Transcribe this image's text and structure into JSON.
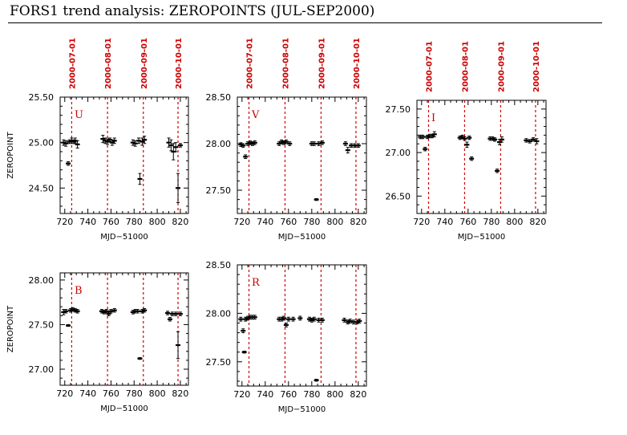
{
  "title": "FORS1 trend analysis: ZEROPOINTS (JUL-SEP2000)",
  "colors": {
    "marker": "#cc0000",
    "data": "#000000"
  },
  "chart_data": [
    {
      "type": "scatter",
      "band": "U",
      "xlabel": "MJD−51000",
      "ylabel": "ZEROPOINT",
      "xlim": [
        716,
        827
      ],
      "ylim": [
        24.22,
        25.5
      ],
      "xticks": [
        720,
        740,
        760,
        780,
        800,
        820
      ],
      "yticks": [
        24.5,
        25.0,
        25.5
      ],
      "ytick_labels": [
        "24.50",
        "25.00",
        "25.50"
      ],
      "markers": [
        {
          "x": 726,
          "label": "2000-07-01"
        },
        {
          "x": 757,
          "label": "2000-08-01"
        },
        {
          "x": 788,
          "label": "2000-09-01"
        },
        {
          "x": 818,
          "label": "2000-10-01"
        }
      ],
      "points": [
        {
          "x": 719,
          "y": 25.0,
          "e": 0.03
        },
        {
          "x": 721,
          "y": 24.99,
          "e": 0.03
        },
        {
          "x": 723,
          "y": 24.77,
          "e": 0.02
        },
        {
          "x": 724,
          "y": 25.01,
          "e": 0.02
        },
        {
          "x": 726,
          "y": 25.02,
          "e": 0.03
        },
        {
          "x": 728,
          "y": 25.01,
          "e": 0.02
        },
        {
          "x": 729,
          "y": 25.02,
          "e": 0.03
        },
        {
          "x": 731,
          "y": 24.98,
          "e": 0.04
        },
        {
          "x": 753,
          "y": 25.04,
          "e": 0.04
        },
        {
          "x": 755,
          "y": 25.02,
          "e": 0.03
        },
        {
          "x": 757,
          "y": 25.01,
          "e": 0.03
        },
        {
          "x": 759,
          "y": 25.03,
          "e": 0.02
        },
        {
          "x": 761,
          "y": 25.0,
          "e": 0.03
        },
        {
          "x": 763,
          "y": 25.02,
          "e": 0.03
        },
        {
          "x": 779,
          "y": 25.0,
          "e": 0.03
        },
        {
          "x": 781,
          "y": 24.99,
          "e": 0.03
        },
        {
          "x": 784,
          "y": 25.02,
          "e": 0.03
        },
        {
          "x": 785,
          "y": 24.6,
          "e": 0.06
        },
        {
          "x": 787,
          "y": 25.01,
          "e": 0.04
        },
        {
          "x": 789,
          "y": 25.03,
          "e": 0.04
        },
        {
          "x": 810,
          "y": 25.0,
          "e": 0.05
        },
        {
          "x": 812,
          "y": 24.97,
          "e": 0.06
        },
        {
          "x": 814,
          "y": 24.9,
          "e": 0.09
        },
        {
          "x": 816,
          "y": 24.95,
          "e": 0.05
        },
        {
          "x": 818,
          "y": 24.5,
          "e": 0.16
        },
        {
          "x": 820,
          "y": 24.97,
          "e": 0.02
        }
      ]
    },
    {
      "type": "scatter",
      "band": "V",
      "xlabel": "MJD−51000",
      "ylabel": "",
      "xlim": [
        716,
        827
      ],
      "ylim": [
        27.25,
        28.5
      ],
      "xticks": [
        720,
        740,
        760,
        780,
        800,
        820
      ],
      "yticks": [
        27.5,
        28.0,
        28.5
      ],
      "ytick_labels": [
        "27.50",
        "28.00",
        "28.50"
      ],
      "markers": [
        {
          "x": 726,
          "label": "2000-07-01"
        },
        {
          "x": 757,
          "label": "2000-08-01"
        },
        {
          "x": 788,
          "label": "2000-09-01"
        },
        {
          "x": 818,
          "label": "2000-10-01"
        }
      ],
      "points": [
        {
          "x": 719,
          "y": 27.99,
          "e": 0.02
        },
        {
          "x": 721,
          "y": 27.98,
          "e": 0.02
        },
        {
          "x": 723,
          "y": 27.86,
          "e": 0.02
        },
        {
          "x": 725,
          "y": 28.0,
          "e": 0.02
        },
        {
          "x": 727,
          "y": 28.01,
          "e": 0.02
        },
        {
          "x": 729,
          "y": 28.0,
          "e": 0.02
        },
        {
          "x": 731,
          "y": 28.01,
          "e": 0.02
        },
        {
          "x": 752,
          "y": 28.0,
          "e": 0.02
        },
        {
          "x": 754,
          "y": 28.02,
          "e": 0.02
        },
        {
          "x": 756,
          "y": 28.01,
          "e": 0.02
        },
        {
          "x": 758,
          "y": 28.02,
          "e": 0.02
        },
        {
          "x": 761,
          "y": 28.0,
          "e": 0.02
        },
        {
          "x": 780,
          "y": 28.0,
          "e": 0.02
        },
        {
          "x": 782,
          "y": 28.0,
          "e": 0.02
        },
        {
          "x": 784,
          "y": 27.4,
          "e": 0.01
        },
        {
          "x": 786,
          "y": 28.0,
          "e": 0.02
        },
        {
          "x": 789,
          "y": 28.01,
          "e": 0.02
        },
        {
          "x": 809,
          "y": 28.0,
          "e": 0.02
        },
        {
          "x": 811,
          "y": 27.93,
          "e": 0.03
        },
        {
          "x": 814,
          "y": 27.98,
          "e": 0.02
        },
        {
          "x": 817,
          "y": 27.98,
          "e": 0.02
        },
        {
          "x": 820,
          "y": 27.98,
          "e": 0.02
        }
      ]
    },
    {
      "type": "scatter",
      "band": "I",
      "xlabel": "MJD−51000",
      "ylabel": "",
      "xlim": [
        716,
        827
      ],
      "ylim": [
        26.3,
        27.6
      ],
      "xticks": [
        720,
        740,
        760,
        780,
        800,
        820
      ],
      "yticks": [
        26.5,
        27.0,
        27.5
      ],
      "ytick_labels": [
        "26.50",
        "27.00",
        "27.50"
      ],
      "markers": [
        {
          "x": 726,
          "label": "2000-07-01"
        },
        {
          "x": 757,
          "label": "2000-08-01"
        },
        {
          "x": 788,
          "label": "2000-09-01"
        },
        {
          "x": 818,
          "label": "2000-10-01"
        }
      ],
      "points": [
        {
          "x": 719,
          "y": 27.18,
          "e": 0.02
        },
        {
          "x": 721,
          "y": 27.18,
          "e": 0.02
        },
        {
          "x": 723,
          "y": 27.04,
          "e": 0.02
        },
        {
          "x": 725,
          "y": 27.18,
          "e": 0.02
        },
        {
          "x": 727,
          "y": 27.19,
          "e": 0.02
        },
        {
          "x": 729,
          "y": 27.19,
          "e": 0.02
        },
        {
          "x": 731,
          "y": 27.21,
          "e": 0.03
        },
        {
          "x": 753,
          "y": 27.17,
          "e": 0.02
        },
        {
          "x": 755,
          "y": 27.18,
          "e": 0.02
        },
        {
          "x": 757,
          "y": 27.16,
          "e": 0.02
        },
        {
          "x": 759,
          "y": 27.09,
          "e": 0.03
        },
        {
          "x": 761,
          "y": 27.17,
          "e": 0.02
        },
        {
          "x": 763,
          "y": 26.93,
          "e": 0.02
        },
        {
          "x": 779,
          "y": 27.16,
          "e": 0.02
        },
        {
          "x": 781,
          "y": 27.16,
          "e": 0.02
        },
        {
          "x": 783,
          "y": 27.15,
          "e": 0.02
        },
        {
          "x": 785,
          "y": 26.79,
          "e": 0.02
        },
        {
          "x": 787,
          "y": 27.12,
          "e": 0.03
        },
        {
          "x": 789,
          "y": 27.15,
          "e": 0.03
        },
        {
          "x": 810,
          "y": 27.14,
          "e": 0.02
        },
        {
          "x": 813,
          "y": 27.13,
          "e": 0.02
        },
        {
          "x": 816,
          "y": 27.15,
          "e": 0.02
        },
        {
          "x": 819,
          "y": 27.13,
          "e": 0.03
        }
      ]
    },
    {
      "type": "scatter",
      "band": "B",
      "xlabel": "MJD−51000",
      "ylabel": "ZEROPOINT",
      "xlim": [
        716,
        827
      ],
      "ylim": [
        26.82,
        28.08
      ],
      "xticks": [
        720,
        740,
        760,
        780,
        800,
        820
      ],
      "yticks": [
        27.0,
        27.5,
        28.0
      ],
      "ytick_labels": [
        "27.00",
        "27.50",
        "28.00"
      ],
      "markers": [
        {
          "x": 726,
          "label": ""
        },
        {
          "x": 757,
          "label": ""
        },
        {
          "x": 788,
          "label": ""
        },
        {
          "x": 818,
          "label": ""
        }
      ],
      "points": [
        {
          "x": 719,
          "y": 27.64,
          "e": 0.03
        },
        {
          "x": 721,
          "y": 27.65,
          "e": 0.02
        },
        {
          "x": 723,
          "y": 27.49,
          "e": 0.01
        },
        {
          "x": 725,
          "y": 27.66,
          "e": 0.02
        },
        {
          "x": 727,
          "y": 27.67,
          "e": 0.02
        },
        {
          "x": 729,
          "y": 27.66,
          "e": 0.02
        },
        {
          "x": 731,
          "y": 27.65,
          "e": 0.02
        },
        {
          "x": 752,
          "y": 27.65,
          "e": 0.02
        },
        {
          "x": 754,
          "y": 27.64,
          "e": 0.02
        },
        {
          "x": 756,
          "y": 27.65,
          "e": 0.02
        },
        {
          "x": 758,
          "y": 27.62,
          "e": 0.02
        },
        {
          "x": 760,
          "y": 27.65,
          "e": 0.02
        },
        {
          "x": 763,
          "y": 27.66,
          "e": 0.02
        },
        {
          "x": 779,
          "y": 27.64,
          "e": 0.02
        },
        {
          "x": 781,
          "y": 27.65,
          "e": 0.02
        },
        {
          "x": 783,
          "y": 27.65,
          "e": 0.02
        },
        {
          "x": 785,
          "y": 27.12,
          "e": 0.01
        },
        {
          "x": 787,
          "y": 27.65,
          "e": 0.02
        },
        {
          "x": 789,
          "y": 27.66,
          "e": 0.02
        },
        {
          "x": 809,
          "y": 27.63,
          "e": 0.02
        },
        {
          "x": 811,
          "y": 27.56,
          "e": 0.02
        },
        {
          "x": 813,
          "y": 27.62,
          "e": 0.02
        },
        {
          "x": 816,
          "y": 27.62,
          "e": 0.02
        },
        {
          "x": 818,
          "y": 27.27,
          "e": 0.15
        },
        {
          "x": 820,
          "y": 27.62,
          "e": 0.02
        }
      ]
    },
    {
      "type": "scatter",
      "band": "R",
      "xlabel": "MJD−51000",
      "ylabel": "",
      "xlim": [
        716,
        827
      ],
      "ylim": [
        27.25,
        28.5
      ],
      "xticks": [
        720,
        740,
        760,
        780,
        800,
        820
      ],
      "yticks": [
        27.5,
        28.0,
        28.5
      ],
      "ytick_labels": [
        "27.50",
        "28.00",
        "28.50"
      ],
      "markers": [
        {
          "x": 726,
          "label": ""
        },
        {
          "x": 757,
          "label": ""
        },
        {
          "x": 788,
          "label": ""
        },
        {
          "x": 818,
          "label": ""
        }
      ],
      "points": [
        {
          "x": 719,
          "y": 27.94,
          "e": 0.02
        },
        {
          "x": 721,
          "y": 27.82,
          "e": 0.02
        },
        {
          "x": 722,
          "y": 27.6,
          "e": 0.01
        },
        {
          "x": 723,
          "y": 27.94,
          "e": 0.02
        },
        {
          "x": 725,
          "y": 27.95,
          "e": 0.02
        },
        {
          "x": 727,
          "y": 27.96,
          "e": 0.02
        },
        {
          "x": 729,
          "y": 27.96,
          "e": 0.02
        },
        {
          "x": 731,
          "y": 27.96,
          "e": 0.02
        },
        {
          "x": 752,
          "y": 27.94,
          "e": 0.02
        },
        {
          "x": 754,
          "y": 27.94,
          "e": 0.02
        },
        {
          "x": 756,
          "y": 27.95,
          "e": 0.02
        },
        {
          "x": 758,
          "y": 27.88,
          "e": 0.02
        },
        {
          "x": 760,
          "y": 27.94,
          "e": 0.02
        },
        {
          "x": 764,
          "y": 27.94,
          "e": 0.02
        },
        {
          "x": 770,
          "y": 27.95,
          "e": 0.02
        },
        {
          "x": 778,
          "y": 27.94,
          "e": 0.02
        },
        {
          "x": 780,
          "y": 27.93,
          "e": 0.02
        },
        {
          "x": 782,
          "y": 27.94,
          "e": 0.02
        },
        {
          "x": 784,
          "y": 27.31,
          "e": 0.01
        },
        {
          "x": 786,
          "y": 27.93,
          "e": 0.02
        },
        {
          "x": 789,
          "y": 27.93,
          "e": 0.02
        },
        {
          "x": 808,
          "y": 27.93,
          "e": 0.02
        },
        {
          "x": 811,
          "y": 27.91,
          "e": 0.02
        },
        {
          "x": 813,
          "y": 27.92,
          "e": 0.02
        },
        {
          "x": 816,
          "y": 27.91,
          "e": 0.02
        },
        {
          "x": 819,
          "y": 27.91,
          "e": 0.02
        },
        {
          "x": 821,
          "y": 27.92,
          "e": 0.02
        }
      ]
    }
  ]
}
